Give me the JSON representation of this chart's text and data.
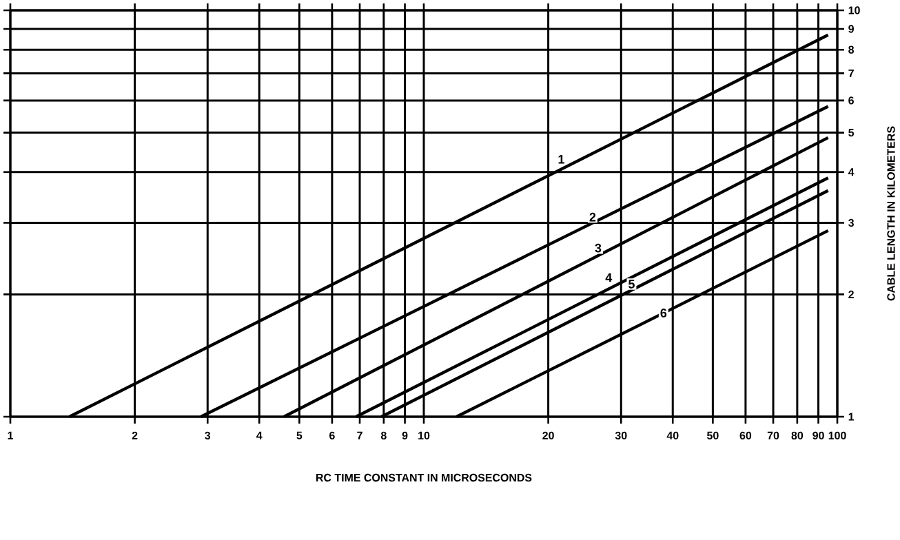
{
  "chart_data": {
    "type": "line",
    "xlabel": "RC TIME CONSTANT IN MICROSECONDS",
    "ylabel": "CABLE LENGTH IN KILOMETERS",
    "log": "xy",
    "xlim": [
      1,
      100
    ],
    "ylim": [
      1,
      10
    ],
    "xticks": [
      1,
      2,
      3,
      4,
      5,
      6,
      7,
      8,
      9,
      10,
      20,
      30,
      40,
      50,
      60,
      70,
      80,
      90,
      100
    ],
    "yticks": [
      1,
      2,
      3,
      4,
      5,
      6,
      7,
      8,
      9,
      10
    ],
    "grid": true,
    "marker": "none",
    "line_style": "solid",
    "series": [
      {
        "color": "#000000",
        "x": [
          1.39,
          95
        ],
        "values": [
          1,
          8.7
        ]
      },
      {
        "color": "#000000",
        "x": [
          2.89,
          95
        ],
        "values": [
          1,
          5.8
        ]
      },
      {
        "color": "#000000",
        "x": [
          4.59,
          95
        ],
        "values": [
          1,
          4.86
        ]
      },
      {
        "color": "#000000",
        "x": [
          6.86,
          95
        ],
        "values": [
          1,
          3.87
        ]
      },
      {
        "color": "#000000",
        "x": [
          7.9,
          95
        ],
        "values": [
          1,
          3.6
        ]
      },
      {
        "color": "#000000",
        "x": [
          12.0,
          95
        ],
        "values": [
          1,
          2.87
        ]
      }
    ],
    "annotations": [
      {
        "text": "1",
        "x": 21.5,
        "y": 4.3
      },
      {
        "text": "2",
        "x": 25.6,
        "y": 3.1
      },
      {
        "text": "3",
        "x": 26.4,
        "y": 2.6
      },
      {
        "text": "4",
        "x": 28,
        "y": 2.2
      },
      {
        "text": "5",
        "x": 31.8,
        "y": 2.12
      },
      {
        "text": "6",
        "x": 38,
        "y": 1.8
      }
    ]
  }
}
